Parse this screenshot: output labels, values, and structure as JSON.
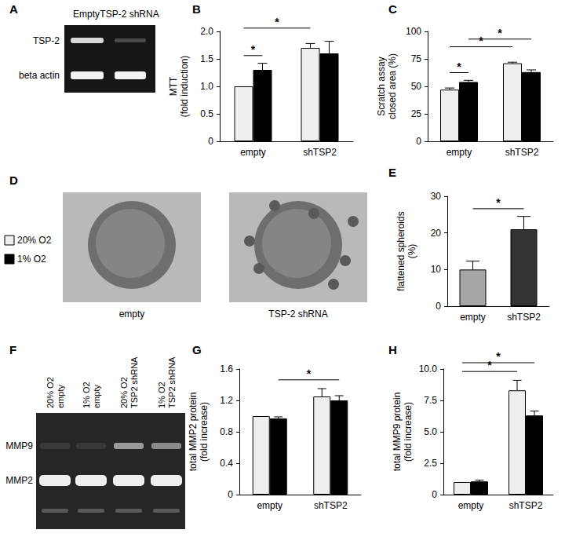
{
  "chart_data": [
    {
      "type": "bar",
      "title": "B",
      "y_label": "MTT\n(fold induction)",
      "categories": [
        "empty",
        "shTSP2"
      ],
      "series": [
        {
          "name": "20% O2",
          "color": "#eeeeee",
          "values": [
            1.0,
            1.7
          ],
          "errors": [
            0,
            0.08
          ]
        },
        {
          "name": "1% O2",
          "color": "#000000",
          "values": [
            1.3,
            1.6
          ],
          "errors": [
            0.12,
            0.22
          ]
        }
      ],
      "ylim": [
        0,
        2
      ],
      "yticks": [
        0,
        0.5,
        {
          "value": 1,
          "label": "1.0"
        },
        1.5,
        {
          "value": 2,
          "label": "2.0"
        }
      ],
      "grid": false,
      "significance": [
        {
          "from": {
            "category": "empty",
            "series": "20% O2"
          },
          "to": {
            "category": "empty",
            "series": "1% O2"
          },
          "label": "*"
        },
        {
          "from": {
            "category": "empty",
            "series": "20% O2"
          },
          "to": {
            "category": "shTSP2",
            "series": "20% O2"
          },
          "label": "*"
        }
      ]
    },
    {
      "type": "bar",
      "title": "C",
      "y_label": "Scratch assay\nclosed area (%)",
      "categories": [
        "empty",
        "shTSP2"
      ],
      "series": [
        {
          "name": "20% O2",
          "color": "#eeeeee",
          "values": [
            47,
            71
          ],
          "errors": [
            1.5,
            1
          ]
        },
        {
          "name": "1% O2",
          "color": "#000000",
          "values": [
            54,
            63
          ],
          "errors": [
            1.5,
            2
          ]
        }
      ],
      "ylim": [
        0,
        100
      ],
      "yticks": [
        0,
        25,
        50,
        75,
        100
      ],
      "grid": false,
      "significance": [
        {
          "from": {
            "category": "empty",
            "series": "20% O2"
          },
          "to": {
            "category": "empty",
            "series": "1% O2"
          },
          "label": "*"
        },
        {
          "from": {
            "category": "empty",
            "series": "20% O2"
          },
          "to": {
            "category": "shTSP2",
            "series": "20% O2"
          },
          "label": "*"
        },
        {
          "from": {
            "category": "empty",
            "series": "1% O2"
          },
          "to": {
            "category": "shTSP2",
            "series": "1% O2"
          },
          "label": "*"
        }
      ]
    },
    {
      "type": "bar",
      "title": "E",
      "y_label": "flattened spheroids\n(%)",
      "categories": [
        "empty",
        "shTSP2"
      ],
      "values": [
        10,
        21
      ],
      "errors": [
        2.3,
        3.5
      ],
      "colors": [
        "#a6a6a6",
        "#333333"
      ],
      "ylim": [
        0,
        30
      ],
      "yticks": [
        0,
        10,
        20,
        30
      ],
      "grid": false,
      "significance": [
        {
          "from": {
            "category": "empty"
          },
          "to": {
            "category": "shTSP2"
          },
          "label": "*"
        }
      ]
    },
    {
      "type": "bar",
      "title": "G",
      "y_label": "total MMP2 protein\n(fold increase)",
      "categories": [
        "empty",
        "shTSP2"
      ],
      "series": [
        {
          "name": "20% O2",
          "color": "#eeeeee",
          "values": [
            1.0,
            1.25
          ],
          "errors": [
            0,
            0.1
          ]
        },
        {
          "name": "1% O2",
          "color": "#000000",
          "values": [
            0.97,
            1.2
          ],
          "errors": [
            0.02,
            0.06
          ]
        }
      ],
      "ylim": [
        0,
        1.6
      ],
      "yticks": [
        0,
        0.4,
        0.8,
        1.2,
        1.6
      ],
      "grid": false,
      "significance": [
        {
          "from": {
            "category": "empty",
            "series": "1% O2"
          },
          "to": {
            "category": "shTSP2",
            "series": "1% O2"
          },
          "label": "*"
        }
      ]
    },
    {
      "type": "bar",
      "title": "H",
      "y_label": "total MMP9 protein\n(fold increase)",
      "categories": [
        "empty",
        "shTSP2"
      ],
      "series": [
        {
          "name": "20% O2",
          "color": "#eeeeee",
          "values": [
            1.0,
            8.3
          ],
          "errors": [
            0,
            0.8
          ]
        },
        {
          "name": "1% O2",
          "color": "#000000",
          "values": [
            1.05,
            6.3
          ],
          "errors": [
            0.1,
            0.35
          ]
        }
      ],
      "ylim": [
        0,
        10
      ],
      "yticks": [
        0,
        2.5,
        {
          "value": 5,
          "label": "5.0"
        },
        7.5,
        {
          "value": 10,
          "label": "10.0"
        }
      ],
      "grid": false,
      "significance": [
        {
          "from": {
            "category": "empty",
            "series": "20% O2"
          },
          "to": {
            "category": "shTSP2",
            "series": "20% O2"
          },
          "label": "*"
        },
        {
          "from": {
            "category": "empty",
            "series": "20% O2"
          },
          "to": {
            "category": "shTSP2",
            "series": "1% O2"
          },
          "label": "*"
        }
      ]
    }
  ],
  "images": [
    {
      "label": "A",
      "lanes": [
        "Empty",
        "TSP-2 shRNA"
      ],
      "rows": [
        "TSP-2",
        "beta actin"
      ]
    },
    {
      "label": "D",
      "captions": [
        "empty",
        "TSP-2 shRNA"
      ]
    },
    {
      "label": "F",
      "lanes": [
        "20% O2\nempty",
        "1% O2\nempty",
        "20% O2\nTSP2 shRNA",
        "1% O2\nTSP2 shRNA"
      ],
      "bands": [
        "MMP9",
        "MMP2"
      ]
    }
  ]
}
